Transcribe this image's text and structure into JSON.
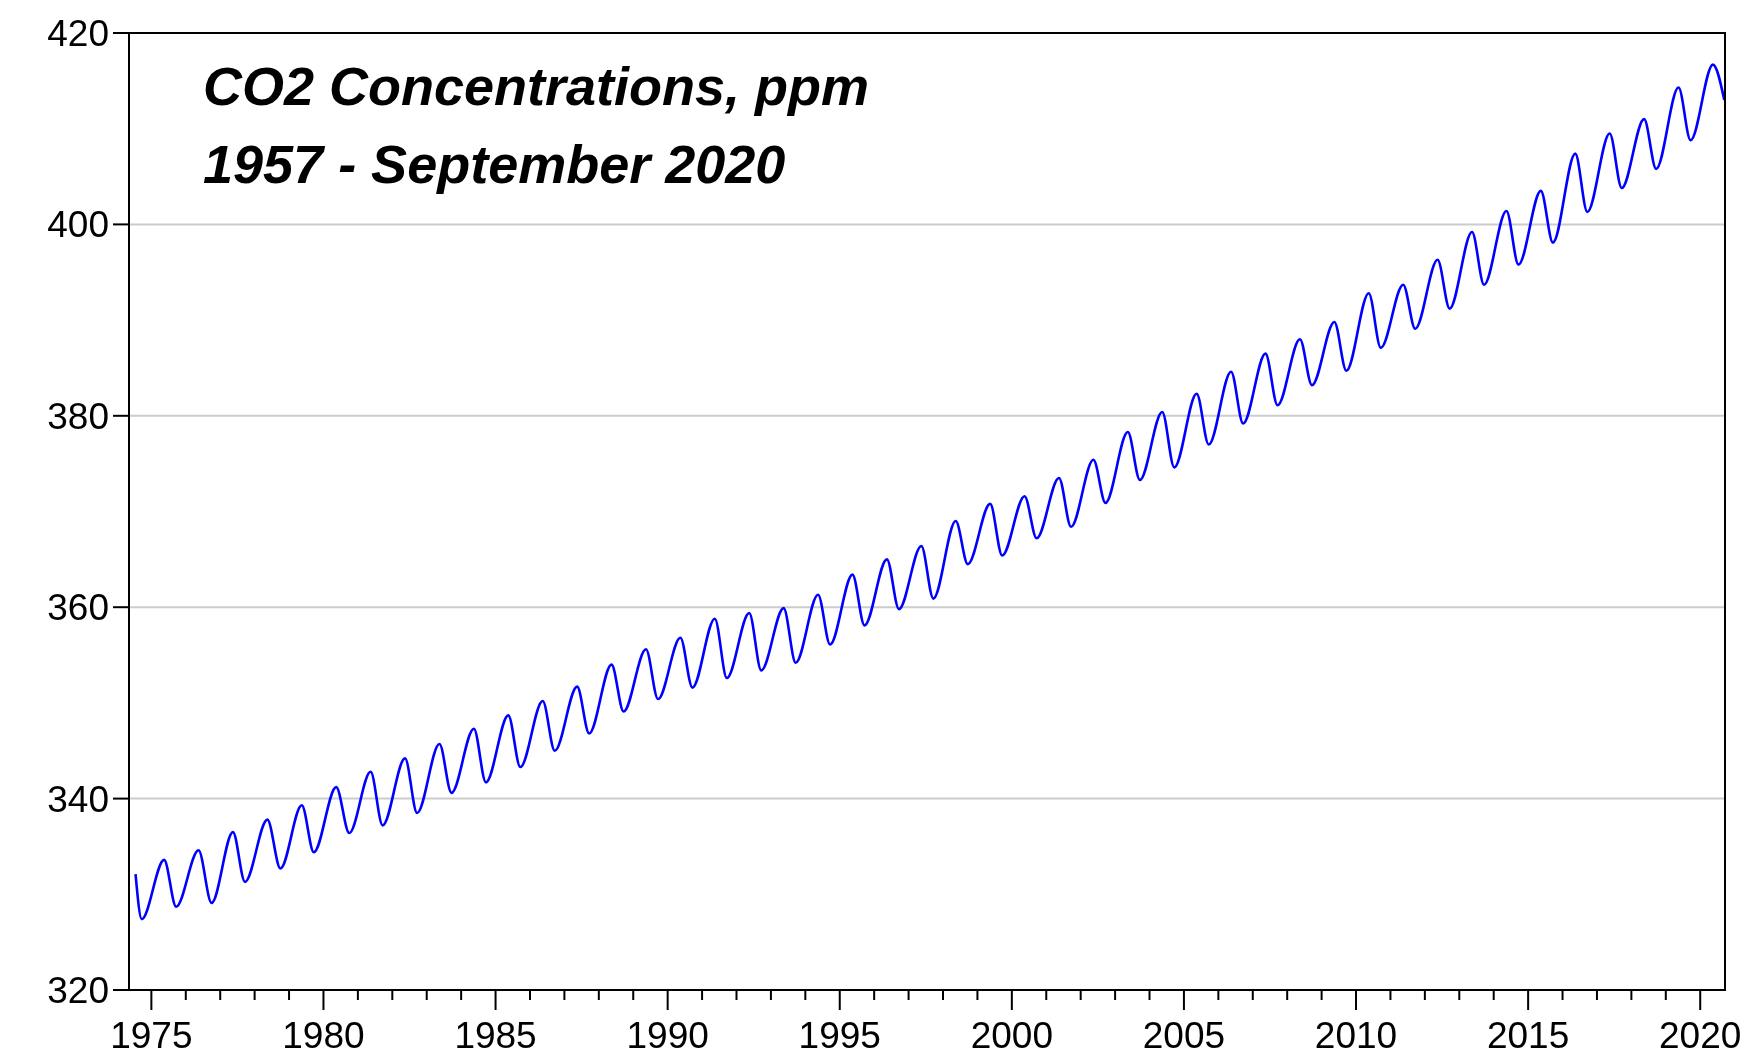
{
  "chart_data": {
    "type": "line",
    "title": "CO2 Concentrations, ppm",
    "subtitle": "1957 - September 2020",
    "x": [
      1974.54,
      1974.72,
      1975.37,
      1975.72,
      1976.37,
      1976.75,
      1977.37,
      1977.72,
      1978.37,
      1978.75,
      1979.37,
      1979.72,
      1980.37,
      1980.75,
      1981.37,
      1981.72,
      1982.37,
      1982.72,
      1983.37,
      1983.72,
      1984.37,
      1984.72,
      1985.37,
      1985.72,
      1986.37,
      1986.72,
      1987.37,
      1987.72,
      1988.37,
      1988.72,
      1989.37,
      1989.72,
      1990.37,
      1990.72,
      1991.37,
      1991.72,
      1992.37,
      1992.72,
      1993.37,
      1993.72,
      1994.37,
      1994.72,
      1995.37,
      1995.72,
      1996.37,
      1996.72,
      1997.37,
      1997.72,
      1998.37,
      1998.72,
      1999.37,
      1999.72,
      2000.37,
      2000.72,
      2001.37,
      2001.72,
      2002.37,
      2002.72,
      2003.37,
      2003.72,
      2004.37,
      2004.72,
      2005.37,
      2005.72,
      2006.37,
      2006.72,
      2007.37,
      2007.72,
      2008.37,
      2008.72,
      2009.37,
      2009.72,
      2010.37,
      2010.72,
      2011.37,
      2011.72,
      2012.37,
      2012.72,
      2013.37,
      2013.72,
      2014.37,
      2014.72,
      2015.37,
      2015.72,
      2016.37,
      2016.72,
      2017.37,
      2017.72,
      2018.37,
      2018.72,
      2019.37,
      2019.72,
      2020.37,
      2020.7
    ],
    "series": [
      {
        "color": "#0000ff",
        "values": [
          332.1,
          327.4,
          333.6,
          328.7,
          334.6,
          329.1,
          336.5,
          331.3,
          337.8,
          332.7,
          339.3,
          334.4,
          341.2,
          336.4,
          342.8,
          337.2,
          344.2,
          338.5,
          345.7,
          340.6,
          347.3,
          341.7,
          348.7,
          343.3,
          350.2,
          345.0,
          351.7,
          346.8,
          354.0,
          349.1,
          355.6,
          350.4,
          356.8,
          351.6,
          358.8,
          352.6,
          359.4,
          353.4,
          359.9,
          354.2,
          361.3,
          356.1,
          363.4,
          358.1,
          365.0,
          359.8,
          366.4,
          360.9,
          369.0,
          364.5,
          370.8,
          365.4,
          371.6,
          367.2,
          373.5,
          368.4,
          375.4,
          370.9,
          378.3,
          373.3,
          380.4,
          374.6,
          382.3,
          377.0,
          384.6,
          379.2,
          386.5,
          381.1,
          388.0,
          383.2,
          389.8,
          384.7,
          392.8,
          387.1,
          393.7,
          389.1,
          396.3,
          391.2,
          399.2,
          393.7,
          401.4,
          395.8,
          403.5,
          398.1,
          407.4,
          401.3,
          409.5,
          403.8,
          411.0,
          405.8,
          414.3,
          408.8,
          416.7,
          413.0
        ]
      }
    ],
    "xlim": [
      1974.35,
      2020.72
    ],
    "xticks": [
      1975,
      {
        "value": 1976,
        "label": null
      },
      {
        "value": 1977,
        "label": null
      },
      {
        "value": 1978,
        "label": null
      },
      {
        "value": 1979,
        "label": null
      },
      1980,
      {
        "value": 1981,
        "label": null
      },
      {
        "value": 1982,
        "label": null
      },
      {
        "value": 1983,
        "label": null
      },
      {
        "value": 1984,
        "label": null
      },
      1985,
      {
        "value": 1986,
        "label": null
      },
      {
        "value": 1987,
        "label": null
      },
      {
        "value": 1988,
        "label": null
      },
      {
        "value": 1989,
        "label": null
      },
      1990,
      {
        "value": 1991,
        "label": null
      },
      {
        "value": 1992,
        "label": null
      },
      {
        "value": 1993,
        "label": null
      },
      {
        "value": 1994,
        "label": null
      },
      1995,
      {
        "value": 1996,
        "label": null
      },
      {
        "value": 1997,
        "label": null
      },
      {
        "value": 1998,
        "label": null
      },
      {
        "value": 1999,
        "label": null
      },
      2000,
      {
        "value": 2001,
        "label": null
      },
      {
        "value": 2002,
        "label": null
      },
      {
        "value": 2003,
        "label": null
      },
      {
        "value": 2004,
        "label": null
      },
      2005,
      {
        "value": 2006,
        "label": null
      },
      {
        "value": 2007,
        "label": null
      },
      {
        "value": 2008,
        "label": null
      },
      {
        "value": 2009,
        "label": null
      },
      2010,
      {
        "value": 2011,
        "label": null
      },
      {
        "value": 2012,
        "label": null
      },
      {
        "value": 2013,
        "label": null
      },
      {
        "value": 2014,
        "label": null
      },
      2015,
      {
        "value": 2016,
        "label": null
      },
      {
        "value": 2017,
        "label": null
      },
      {
        "value": 2018,
        "label": null
      },
      {
        "value": 2019,
        "label": null
      },
      2020
    ],
    "ylim": [
      320,
      420
    ],
    "yticks": [
      320,
      340,
      360,
      380,
      400,
      420
    ],
    "grid": "y",
    "line_style": "solid"
  }
}
